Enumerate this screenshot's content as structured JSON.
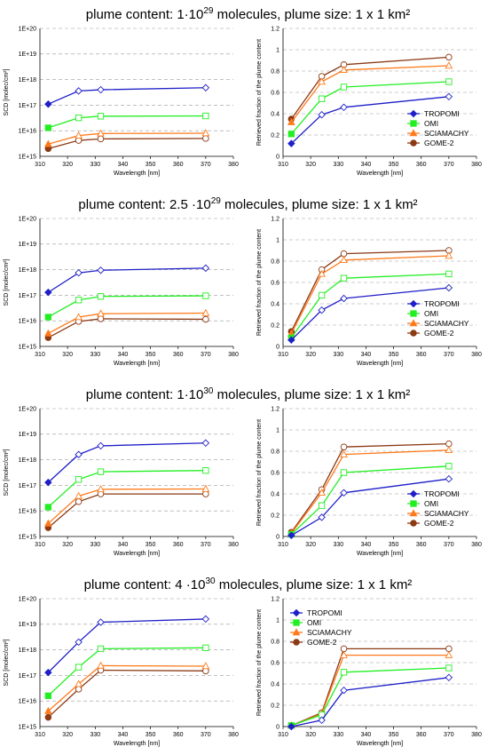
{
  "titles": [
    {
      "prefix": "plume content: 1·10",
      "exp": "29",
      "suffix": " molecules, plume size: 1 x 1 km²"
    },
    {
      "prefix": "plume content: 2.5 ·10",
      "exp": "29",
      "suffix": " molecules, plume size: 1 x 1 km²"
    },
    {
      "prefix": "plume content: 1·10",
      "exp": "30",
      "suffix": " molecules, plume size: 1 x 1 km²"
    },
    {
      "prefix": "plume content: 4 ·10",
      "exp": "30",
      "suffix": " molecules, plume size: 1 x 1 km²"
    }
  ],
  "series_style": [
    {
      "name": "TROPOMI",
      "color": "#1f1fc9",
      "marker": "diamond"
    },
    {
      "name": "OMI",
      "color": "#22ee22",
      "marker": "square"
    },
    {
      "name": "SCIAMACHY",
      "color": "#ff7a1a",
      "marker": "triangle"
    },
    {
      "name": "GOME-2",
      "color": "#8b3a14",
      "marker": "circle"
    }
  ],
  "chart_data": [
    {
      "type": "line",
      "yscale": "log",
      "xlabel": "Wavelength [nm]",
      "ylabel": "SCD [molec/cm²]",
      "xlim": [
        310,
        380
      ],
      "ylim": [
        1000000000000000.0,
        1e+20
      ],
      "xticks": [
        310,
        320,
        330,
        340,
        350,
        360,
        370,
        380
      ],
      "yticks": [
        "1E+15",
        "1E+16",
        "1E+17",
        "1E+18",
        "1E+19",
        "1E+20"
      ],
      "grid": "horizontal dashed",
      "legend": "none",
      "x": [
        313,
        324,
        332,
        370
      ],
      "series": [
        {
          "name": "TROPOMI",
          "values": [
            1.1e+17,
            3.6e+17,
            4e+17,
            4.8e+17
          ]
        },
        {
          "name": "OMI",
          "values": [
            1.3e+16,
            3.2e+16,
            3.7e+16,
            3.8e+16
          ]
        },
        {
          "name": "SCIAMACHY",
          "values": [
            3000000000000000.0,
            6500000000000000.0,
            7800000000000000.0,
            8000000000000000.0
          ]
        },
        {
          "name": "GOME-2",
          "values": [
            2000000000000000.0,
            4200000000000000.0,
            4800000000000000.0,
            5000000000000000.0
          ]
        }
      ]
    },
    {
      "type": "line",
      "xlabel": "Wavelength [nm]",
      "ylabel": "Retrieved fraction of the plume content",
      "xlim": [
        310,
        380
      ],
      "ylim": [
        0,
        1.2
      ],
      "xticks": [
        310,
        320,
        330,
        340,
        350,
        360,
        370,
        380
      ],
      "yticks": [
        "0",
        "0.2",
        "0.4",
        "0.6",
        "0.8",
        "1",
        "1.2"
      ],
      "grid": "horizontal dashed",
      "legend": "lower-right",
      "x": [
        313,
        324,
        332,
        370
      ],
      "series": [
        {
          "name": "TROPOMI",
          "values": [
            0.12,
            0.39,
            0.46,
            0.56
          ]
        },
        {
          "name": "OMI",
          "values": [
            0.21,
            0.54,
            0.65,
            0.7
          ]
        },
        {
          "name": "SCIAMACHY",
          "values": [
            0.32,
            0.7,
            0.81,
            0.85
          ]
        },
        {
          "name": "GOME-2",
          "values": [
            0.35,
            0.75,
            0.86,
            0.93
          ]
        }
      ]
    },
    {
      "type": "line",
      "yscale": "log",
      "xlabel": "Wavelength [nm]",
      "ylabel": "SCD [molec/cm²]",
      "xlim": [
        310,
        380
      ],
      "ylim": [
        1000000000000000.0,
        1e+20
      ],
      "xticks": [
        310,
        320,
        330,
        340,
        350,
        360,
        370,
        380
      ],
      "yticks": [
        "1E+15",
        "1E+16",
        "1E+17",
        "1E+18",
        "1E+19",
        "1E+20"
      ],
      "grid": "horizontal dashed",
      "legend": "none",
      "x": [
        313,
        324,
        332,
        370
      ],
      "series": [
        {
          "name": "TROPOMI",
          "values": [
            1.3e+17,
            7.5e+17,
            9.5e+17,
            1.15e+18
          ]
        },
        {
          "name": "OMI",
          "values": [
            1.4e+16,
            6.5e+16,
            9e+16,
            9.5e+16
          ]
        },
        {
          "name": "SCIAMACHY",
          "values": [
            3200000000000000.0,
            1.4e+16,
            1.9e+16,
            2e+16
          ]
        },
        {
          "name": "GOME-2",
          "values": [
            2200000000000000.0,
            9500000000000000.0,
            1.2e+16,
            1.15e+16
          ]
        }
      ]
    },
    {
      "type": "line",
      "xlabel": "Wavelength [nm]",
      "ylabel": "Retrieved fraction of the plume content",
      "xlim": [
        310,
        380
      ],
      "ylim": [
        0,
        1.2
      ],
      "xticks": [
        310,
        320,
        330,
        340,
        350,
        360,
        370,
        380
      ],
      "yticks": [
        "0",
        "0.2",
        "0.4",
        "0.6",
        "0.8",
        "1",
        "1.2"
      ],
      "grid": "horizontal dashed",
      "legend": "lower-right",
      "x": [
        313,
        324,
        332,
        370
      ],
      "series": [
        {
          "name": "TROPOMI",
          "values": [
            0.06,
            0.34,
            0.45,
            0.55
          ]
        },
        {
          "name": "OMI",
          "values": [
            0.08,
            0.48,
            0.64,
            0.68
          ]
        },
        {
          "name": "SCIAMACHY",
          "values": [
            0.12,
            0.68,
            0.81,
            0.85
          ]
        },
        {
          "name": "GOME-2",
          "values": [
            0.14,
            0.72,
            0.87,
            0.9
          ]
        }
      ]
    },
    {
      "type": "line",
      "yscale": "log",
      "xlabel": "Wavelength [nm]",
      "ylabel": "SCD [molec/cm²]",
      "xlim": [
        310,
        380
      ],
      "ylim": [
        1000000000000000.0,
        1e+20
      ],
      "xticks": [
        310,
        320,
        330,
        340,
        350,
        360,
        370,
        380
      ],
      "yticks": [
        "1E+15",
        "1E+16",
        "1E+17",
        "1E+18",
        "1E+19",
        "1E+20"
      ],
      "grid": "horizontal dashed",
      "legend": "none",
      "x": [
        313,
        324,
        332,
        370
      ],
      "series": [
        {
          "name": "TROPOMI",
          "values": [
            1.3e+17,
            1.6e+18,
            3.5e+18,
            4.5e+18
          ]
        },
        {
          "name": "OMI",
          "values": [
            1.4e+16,
            1.7e+17,
            3.4e+17,
            3.8e+17
          ]
        },
        {
          "name": "SCIAMACHY",
          "values": [
            3200000000000000.0,
            3.8e+16,
            7e+16,
            7.2e+16
          ]
        },
        {
          "name": "GOME-2",
          "values": [
            2200000000000000.0,
            2.3e+16,
            4.6e+16,
            4.6e+16
          ]
        }
      ]
    },
    {
      "type": "line",
      "xlabel": "Wavelength [nm]",
      "ylabel": "Retrieved fraction of the plume content",
      "xlim": [
        310,
        380
      ],
      "ylim": [
        0,
        1.2
      ],
      "xticks": [
        310,
        320,
        330,
        340,
        350,
        360,
        370,
        380
      ],
      "yticks": [
        "0",
        "0.2",
        "0.4",
        "0.6",
        "0.8",
        "1",
        "1.2"
      ],
      "grid": "horizontal dashed",
      "legend": "lower-right",
      "x": [
        313,
        324,
        332,
        370
      ],
      "series": [
        {
          "name": "TROPOMI",
          "values": [
            0.01,
            0.18,
            0.41,
            0.54
          ]
        },
        {
          "name": "OMI",
          "values": [
            0.02,
            0.29,
            0.6,
            0.66
          ]
        },
        {
          "name": "SCIAMACHY",
          "values": [
            0.03,
            0.41,
            0.77,
            0.81
          ]
        },
        {
          "name": "GOME-2",
          "values": [
            0.04,
            0.44,
            0.84,
            0.87
          ]
        }
      ]
    },
    {
      "type": "line",
      "yscale": "log",
      "xlabel": "Wavelength [nm]",
      "ylabel": "SCD [molec/cm²]",
      "xlim": [
        310,
        380
      ],
      "ylim": [
        1000000000000000.0,
        1e+20
      ],
      "xticks": [
        310,
        320,
        330,
        340,
        350,
        360,
        370,
        380
      ],
      "yticks": [
        "1E+15",
        "1E+16",
        "1E+17",
        "1E+18",
        "1E+19",
        "1E+20"
      ],
      "grid": "horizontal dashed",
      "legend": "none",
      "x": [
        313,
        324,
        332,
        370
      ],
      "series": [
        {
          "name": "TROPOMI",
          "values": [
            1.3e+17,
            2e+18,
            1.2e+19,
            1.6e+19
          ]
        },
        {
          "name": "OMI",
          "values": [
            1.6e+16,
            2.1e+17,
            1.1e+18,
            1.2e+18
          ]
        },
        {
          "name": "SCIAMACHY",
          "values": [
            4000000000000000.0,
            4.6e+16,
            2.4e+17,
            2.3e+17
          ]
        },
        {
          "name": "GOME-2",
          "values": [
            2300000000000000.0,
            2.9e+16,
            1.6e+17,
            1.5e+17
          ]
        }
      ]
    },
    {
      "type": "line",
      "xlabel": "Wavelength [nm]",
      "ylabel": "Retrieved fraction of the plume content",
      "xlim": [
        310,
        380
      ],
      "ylim": [
        0,
        1.2
      ],
      "xticks": [
        310,
        320,
        330,
        340,
        350,
        360,
        370,
        380
      ],
      "yticks": [
        "0",
        "0.2",
        "0.4",
        "0.6",
        "0.8",
        "1",
        "1.2"
      ],
      "grid": "horizontal dashed",
      "legend": "top-left",
      "x": [
        313,
        324,
        332,
        370
      ],
      "series": [
        {
          "name": "TROPOMI",
          "values": [
            0.0,
            0.06,
            0.34,
            0.46
          ]
        },
        {
          "name": "OMI",
          "values": [
            0.01,
            0.11,
            0.51,
            0.55
          ]
        },
        {
          "name": "SCIAMACHY",
          "values": [
            0.01,
            0.12,
            0.67,
            0.67
          ]
        },
        {
          "name": "GOME-2",
          "values": [
            0.01,
            0.13,
            0.73,
            0.73
          ]
        }
      ]
    }
  ]
}
